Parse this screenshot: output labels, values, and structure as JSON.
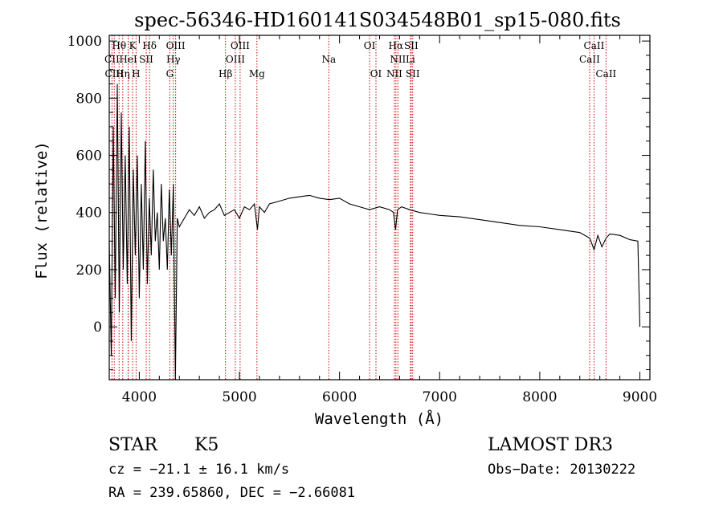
{
  "chart_data": {
    "type": "line",
    "title": "spec-56346-HD160141S034548B01_sp15-080.fits",
    "xlabel": "Wavelength (Å)",
    "ylabel": "Flux (relative)",
    "xlim": [
      3700,
      9100
    ],
    "ylim": [
      -185,
      1020
    ],
    "xticks": [
      4000,
      5000,
      6000,
      7000,
      8000,
      9000
    ],
    "yticks": [
      0,
      200,
      400,
      600,
      800,
      1000
    ],
    "series": [
      {
        "name": "flux",
        "x": [
          3700,
          3720,
          3740,
          3760,
          3780,
          3800,
          3820,
          3840,
          3860,
          3880,
          3900,
          3920,
          3940,
          3960,
          3980,
          4000,
          4020,
          4040,
          4060,
          4080,
          4100,
          4120,
          4140,
          4160,
          4180,
          4200,
          4220,
          4240,
          4260,
          4280,
          4300,
          4320,
          4340,
          4360,
          4380,
          4400,
          4450,
          4500,
          4550,
          4600,
          4650,
          4700,
          4750,
          4800,
          4850,
          4900,
          4950,
          5000,
          5050,
          5100,
          5150,
          5180,
          5200,
          5250,
          5300,
          5400,
          5500,
          5600,
          5700,
          5800,
          5900,
          6000,
          6100,
          6200,
          6300,
          6400,
          6500,
          6540,
          6560,
          6580,
          6620,
          6700,
          6800,
          6900,
          7000,
          7200,
          7400,
          7600,
          7800,
          8000,
          8200,
          8400,
          8500,
          8542,
          8580,
          8620,
          8662,
          8700,
          8800,
          8900,
          8980,
          9000
        ],
        "values": [
          300,
          -100,
          700,
          100,
          850,
          50,
          750,
          200,
          600,
          150,
          700,
          -50,
          550,
          250,
          600,
          100,
          500,
          200,
          650,
          150,
          450,
          250,
          550,
          300,
          400,
          200,
          500,
          300,
          380,
          200,
          480,
          250,
          500,
          -185,
          380,
          350,
          380,
          410,
          390,
          420,
          380,
          400,
          410,
          430,
          390,
          400,
          410,
          380,
          420,
          410,
          430,
          340,
          420,
          400,
          430,
          440,
          450,
          455,
          460,
          450,
          445,
          450,
          430,
          420,
          410,
          420,
          410,
          400,
          340,
          410,
          420,
          410,
          400,
          395,
          390,
          385,
          375,
          365,
          355,
          350,
          340,
          330,
          310,
          270,
          320,
          280,
          310,
          325,
          320,
          305,
          300,
          0
        ]
      }
    ],
    "lines": [
      {
        "name": "Hθ",
        "x": 3798
      },
      {
        "name": "CII",
        "x": 3727
      },
      {
        "name": "CIII",
        "x": 3750
      },
      {
        "name": "Hε",
        "x": 3890
      },
      {
        "name": "Hη",
        "x": 3835
      },
      {
        "name": "K",
        "x": 3934
      },
      {
        "name": "HeI",
        "x": 3889
      },
      {
        "name": "H",
        "x": 3968
      },
      {
        "name": "SII",
        "x": 4069
      },
      {
        "name": "Hδ",
        "x": 4102
      },
      {
        "name": "OIII",
        "x": 4363
      },
      {
        "name": "Hγ",
        "x": 4340
      },
      {
        "name": "G",
        "x": 4305
      },
      {
        "name": "Hβ",
        "x": 4861
      },
      {
        "name": "OIII",
        "x": 4959
      },
      {
        "name": "OIII",
        "x": 5007
      },
      {
        "name": "Mg",
        "x": 5175
      },
      {
        "name": "Na",
        "x": 5893
      },
      {
        "name": "OI",
        "x": 6300
      },
      {
        "name": "OI",
        "x": 6364
      },
      {
        "name": "NII",
        "x": 6548
      },
      {
        "name": "Hα",
        "x": 6563
      },
      {
        "name": "NII",
        "x": 6583
      },
      {
        "name": "SII",
        "x": 6716
      },
      {
        "name": "Li",
        "x": 6708
      },
      {
        "name": "SII",
        "x": 6731
      },
      {
        "name": "CaII",
        "x": 8498
      },
      {
        "name": "CaII",
        "x": 8542
      },
      {
        "name": "CaII",
        "x": 8662
      }
    ],
    "line_labels": [
      {
        "text": "Hθ",
        "x": 3798,
        "row": 0
      },
      {
        "text": "K",
        "x": 3934,
        "row": 0
      },
      {
        "text": "Hδ",
        "x": 4102,
        "row": 0
      },
      {
        "text": "OIII",
        "x": 4363,
        "row": 0
      },
      {
        "text": "OIII",
        "x": 5007,
        "row": 0
      },
      {
        "text": "OI",
        "x": 6300,
        "row": 0
      },
      {
        "text": "Hα",
        "x": 6563,
        "row": 0
      },
      {
        "text": "SII",
        "x": 6716,
        "row": 0
      },
      {
        "text": "CaII",
        "x": 8542,
        "row": 0
      },
      {
        "text": "CII",
        "x": 3727,
        "row": 1
      },
      {
        "text": "HeI",
        "x": 3889,
        "row": 1
      },
      {
        "text": "SII",
        "x": 4069,
        "row": 1
      },
      {
        "text": "Hγ",
        "x": 4340,
        "row": 1
      },
      {
        "text": "OIII",
        "x": 4959,
        "row": 1
      },
      {
        "text": "Na",
        "x": 5893,
        "row": 1
      },
      {
        "text": "NII",
        "x": 6583,
        "row": 1
      },
      {
        "text": "Li",
        "x": 6708,
        "row": 1
      },
      {
        "text": "CaII",
        "x": 8498,
        "row": 1
      },
      {
        "text": "CIII",
        "x": 3750,
        "row": 2
      },
      {
        "text": "Hη",
        "x": 3835,
        "row": 2
      },
      {
        "text": "H",
        "x": 3968,
        "row": 2
      },
      {
        "text": "G",
        "x": 4305,
        "row": 2
      },
      {
        "text": "Hβ",
        "x": 4861,
        "row": 2
      },
      {
        "text": "Mg",
        "x": 5175,
        "row": 2
      },
      {
        "text": "OI",
        "x": 6364,
        "row": 2
      },
      {
        "text": "NII",
        "x": 6548,
        "row": 2
      },
      {
        "text": "SII",
        "x": 6731,
        "row": 2
      },
      {
        "text": "CaII",
        "x": 8662,
        "row": 2
      }
    ]
  },
  "info": {
    "class": "STAR",
    "subclass": "K5",
    "survey": "LAMOST DR3",
    "cz": "cz = −21.1 ± 16.1 km/s",
    "obs_date": "Obs−Date: 20130222",
    "coords": "RA = 239.65860, DEC =  −2.66081"
  },
  "colors": {
    "line": "#cc0000",
    "spectrum": "#000000"
  }
}
